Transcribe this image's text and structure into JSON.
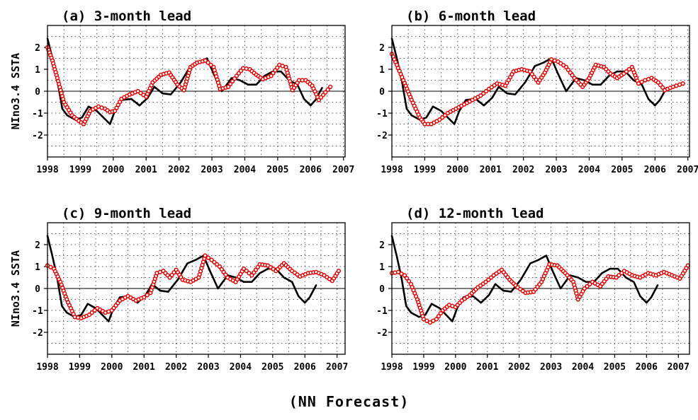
{
  "caption": "(NN Forecast)",
  "colors": {
    "observed": "#000000",
    "forecast": "#ee0000",
    "zero_line": "#000000",
    "grid": "#555555"
  },
  "chart_data": [
    {
      "type": "line",
      "title": "(a) 3-month lead",
      "ylabel": "NIno3.4 SSTA",
      "xlabel": "",
      "xlim": [
        1998,
        2007.05
      ],
      "ylim": [
        -3,
        3
      ],
      "x_ticks": [
        "1998",
        "1999",
        "2000",
        "2001",
        "2002",
        "2003",
        "2004",
        "2005",
        "2006",
        "2007"
      ],
      "y_ticks": [
        "-2",
        "-1",
        "0",
        "1",
        "2"
      ],
      "grid": true,
      "series": [
        {
          "style": "line",
          "color": "#000000",
          "x": [
            1998.0,
            1998.15,
            1998.3,
            1998.45,
            1998.6,
            1998.85,
            1999.05,
            1999.25,
            1999.5,
            1999.7,
            1999.9,
            2000.05,
            2000.25,
            2000.55,
            2000.8,
            2001.05,
            2001.25,
            2001.5,
            2001.75,
            2002.05,
            2002.35,
            2002.6,
            2002.85,
            2003.05,
            2003.3,
            2003.6,
            2003.85,
            2004.1,
            2004.35,
            2004.6,
            2004.85,
            2005.1,
            2005.35,
            2005.6,
            2005.8,
            2006.0,
            2006.15,
            2006.35
          ],
          "y": [
            2.4,
            1.5,
            0.5,
            -0.8,
            -1.1,
            -1.3,
            -1.2,
            -0.7,
            -0.9,
            -1.2,
            -1.5,
            -0.9,
            -0.4,
            -0.35,
            -0.65,
            -0.3,
            0.2,
            -0.1,
            -0.15,
            0.4,
            1.15,
            1.3,
            1.5,
            0.8,
            0.0,
            0.6,
            0.5,
            0.3,
            0.3,
            0.7,
            0.9,
            0.9,
            0.5,
            0.3,
            -0.35,
            -0.65,
            -0.4,
            0.15
          ]
        },
        {
          "style": "circles",
          "color": "#ee0000",
          "x": [
            1998.0,
            1998.15,
            1998.3,
            1998.5,
            1998.75,
            1998.95,
            1999.1,
            1999.3,
            1999.55,
            1999.75,
            1999.9,
            2000.05,
            2000.25,
            2000.5,
            2000.75,
            2001.0,
            2001.2,
            2001.45,
            2001.7,
            2001.95,
            2002.15,
            2002.35,
            2002.55,
            2002.8,
            2003.05,
            2003.25,
            2003.5,
            2003.75,
            2003.95,
            2004.15,
            2004.35,
            2004.55,
            2004.8,
            2005.05,
            2005.25,
            2005.45,
            2005.65,
            2005.85,
            2006.05,
            2006.25,
            2006.45,
            2006.6
          ],
          "y": [
            2.0,
            1.4,
            0.6,
            -0.5,
            -1.1,
            -1.35,
            -1.5,
            -0.9,
            -0.7,
            -0.8,
            -0.95,
            -0.9,
            -0.35,
            -0.15,
            0.0,
            -0.25,
            0.4,
            0.75,
            0.85,
            0.3,
            0.05,
            1.1,
            1.3,
            1.4,
            1.1,
            0.1,
            0.2,
            0.7,
            1.05,
            1.0,
            0.75,
            0.55,
            0.7,
            1.2,
            1.1,
            0.05,
            0.5,
            0.5,
            0.25,
            -0.4,
            -0.05,
            0.2
          ]
        }
      ]
    },
    {
      "type": "line",
      "title": "(b) 6-month lead",
      "ylabel": "",
      "xlabel": "",
      "xlim": [
        1998,
        2007.05
      ],
      "ylim": [
        -3,
        3
      ],
      "x_ticks": [
        "1998",
        "1999",
        "2000",
        "2001",
        "2002",
        "2003",
        "2004",
        "2005",
        "2006",
        "2007"
      ],
      "y_ticks": [
        "-2",
        "-1",
        "0",
        "1",
        "2"
      ],
      "grid": true,
      "series": [
        {
          "style": "line",
          "color": "#000000",
          "x": [
            1998.0,
            1998.15,
            1998.3,
            1998.45,
            1998.6,
            1998.85,
            1999.05,
            1999.25,
            1999.5,
            1999.7,
            1999.9,
            2000.05,
            2000.25,
            2000.55,
            2000.8,
            2001.05,
            2001.25,
            2001.5,
            2001.75,
            2002.05,
            2002.35,
            2002.6,
            2002.85,
            2003.05,
            2003.3,
            2003.6,
            2003.85,
            2004.1,
            2004.35,
            2004.6,
            2004.85,
            2005.1,
            2005.35,
            2005.6,
            2005.8,
            2006.0,
            2006.15,
            2006.35
          ],
          "y": [
            2.4,
            1.5,
            0.5,
            -0.8,
            -1.1,
            -1.3,
            -1.2,
            -0.7,
            -0.9,
            -1.2,
            -1.5,
            -0.9,
            -0.4,
            -0.35,
            -0.65,
            -0.3,
            0.2,
            -0.1,
            -0.15,
            0.4,
            1.15,
            1.3,
            1.5,
            0.8,
            0.0,
            0.6,
            0.5,
            0.3,
            0.3,
            0.7,
            0.9,
            0.9,
            0.5,
            0.3,
            -0.35,
            -0.65,
            -0.4,
            0.15
          ]
        },
        {
          "style": "circles",
          "color": "#ee0000",
          "x": [
            1998.0,
            1998.15,
            1998.35,
            1998.6,
            1998.85,
            1999.0,
            1999.2,
            1999.45,
            1999.7,
            1999.95,
            2000.2,
            2000.45,
            2000.7,
            2000.95,
            2001.2,
            2001.45,
            2001.7,
            2001.95,
            2002.2,
            2002.45,
            2002.65,
            2002.85,
            2003.05,
            2003.3,
            2003.55,
            2003.8,
            2004.0,
            2004.2,
            2004.45,
            2004.65,
            2004.85,
            2005.05,
            2005.3,
            2005.5,
            2005.7,
            2005.9,
            2006.1,
            2006.3,
            2006.55,
            2006.85
          ],
          "y": [
            1.7,
            1.2,
            0.5,
            -0.4,
            -1.2,
            -1.5,
            -1.5,
            -1.3,
            -1.0,
            -0.8,
            -0.6,
            -0.4,
            -0.2,
            0.1,
            0.35,
            0.25,
            0.9,
            1.0,
            0.9,
            0.4,
            0.85,
            1.45,
            1.35,
            1.1,
            0.6,
            0.2,
            0.6,
            1.2,
            1.1,
            0.8,
            0.6,
            0.8,
            1.1,
            0.35,
            0.5,
            0.6,
            0.4,
            0.05,
            0.2,
            0.35
          ]
        }
      ]
    },
    {
      "type": "line",
      "title": "(c) 9-month lead",
      "ylabel": "NIno3.4 SSTA",
      "xlabel": "",
      "xlim": [
        1998,
        2007.25
      ],
      "ylim": [
        -3,
        3
      ],
      "x_ticks": [
        "1998",
        "1999",
        "2000",
        "2001",
        "2002",
        "2003",
        "2004",
        "2005",
        "2006",
        "2007"
      ],
      "y_ticks": [
        "-2",
        "-1",
        "0",
        "1",
        "2"
      ],
      "grid": true,
      "series": [
        {
          "style": "line",
          "color": "#000000",
          "x": [
            1998.0,
            1998.15,
            1998.3,
            1998.45,
            1998.6,
            1998.85,
            1999.05,
            1999.25,
            1999.5,
            1999.7,
            1999.9,
            2000.05,
            2000.25,
            2000.55,
            2000.8,
            2001.05,
            2001.25,
            2001.5,
            2001.75,
            2002.05,
            2002.35,
            2002.6,
            2002.85,
            2003.05,
            2003.3,
            2003.6,
            2003.85,
            2004.1,
            2004.35,
            2004.6,
            2004.85,
            2005.1,
            2005.35,
            2005.6,
            2005.8,
            2006.0,
            2006.15,
            2006.35
          ],
          "y": [
            2.4,
            1.5,
            0.5,
            -0.8,
            -1.1,
            -1.3,
            -1.2,
            -0.7,
            -0.9,
            -1.2,
            -1.5,
            -0.9,
            -0.4,
            -0.35,
            -0.65,
            -0.3,
            0.2,
            -0.1,
            -0.15,
            0.4,
            1.15,
            1.3,
            1.5,
            0.8,
            0.0,
            0.6,
            0.5,
            0.3,
            0.3,
            0.7,
            0.9,
            0.9,
            0.5,
            0.3,
            -0.35,
            -0.65,
            -0.4,
            0.15
          ]
        },
        {
          "style": "circles",
          "color": "#ee0000",
          "x": [
            1998.0,
            1998.2,
            1998.4,
            1998.6,
            1998.85,
            1999.05,
            1999.3,
            1999.55,
            1999.8,
            2000.0,
            2000.25,
            2000.5,
            2000.75,
            2001.0,
            2001.2,
            2001.4,
            2001.6,
            2001.8,
            2002.0,
            2002.2,
            2002.45,
            2002.7,
            2002.9,
            2003.1,
            2003.35,
            2003.6,
            2003.85,
            2004.1,
            2004.35,
            2004.6,
            2004.85,
            2005.1,
            2005.35,
            2005.6,
            2005.85,
            2006.1,
            2006.35,
            2006.6,
            2006.85,
            2007.05
          ],
          "y": [
            1.05,
            0.9,
            0.3,
            -0.5,
            -1.3,
            -1.35,
            -1.2,
            -0.9,
            -1.1,
            -1.0,
            -0.55,
            -0.35,
            -0.55,
            -0.4,
            -0.2,
            0.7,
            0.8,
            0.5,
            0.85,
            0.4,
            0.3,
            0.5,
            1.5,
            1.3,
            1.0,
            0.5,
            0.3,
            0.9,
            0.6,
            1.1,
            1.05,
            0.8,
            1.15,
            0.8,
            0.55,
            0.7,
            0.75,
            0.6,
            0.35,
            0.8
          ]
        }
      ]
    },
    {
      "type": "line",
      "title": "(d) 12-month lead",
      "ylabel": "",
      "xlabel": "",
      "xlim": [
        1998,
        2007.35
      ],
      "ylim": [
        -3,
        3
      ],
      "x_ticks": [
        "1998",
        "1999",
        "2000",
        "2001",
        "2002",
        "2003",
        "2004",
        "2005",
        "2006",
        "2007"
      ],
      "y_ticks": [
        "-2",
        "-1",
        "0",
        "1",
        "2"
      ],
      "grid": true,
      "series": [
        {
          "style": "line",
          "color": "#000000",
          "x": [
            1998.0,
            1998.15,
            1998.3,
            1998.45,
            1998.6,
            1998.85,
            1999.05,
            1999.25,
            1999.5,
            1999.7,
            1999.9,
            2000.05,
            2000.25,
            2000.55,
            2000.8,
            2001.05,
            2001.25,
            2001.5,
            2001.75,
            2002.05,
            2002.35,
            2002.6,
            2002.85,
            2003.05,
            2003.3,
            2003.6,
            2003.85,
            2004.1,
            2004.35,
            2004.6,
            2004.85,
            2005.1,
            2005.35,
            2005.6,
            2005.8,
            2006.0,
            2006.15,
            2006.35
          ],
          "y": [
            2.4,
            1.5,
            0.5,
            -0.8,
            -1.1,
            -1.3,
            -1.2,
            -0.7,
            -0.9,
            -1.2,
            -1.5,
            -0.9,
            -0.4,
            -0.35,
            -0.65,
            -0.3,
            0.2,
            -0.1,
            -0.15,
            0.4,
            1.15,
            1.3,
            1.5,
            0.8,
            0.0,
            0.6,
            0.5,
            0.3,
            0.3,
            0.7,
            0.9,
            0.9,
            0.5,
            0.3,
            -0.35,
            -0.65,
            -0.4,
            0.15
          ]
        },
        {
          "style": "circles",
          "color": "#ee0000",
          "x": [
            1998.0,
            1998.2,
            1998.4,
            1998.6,
            1998.8,
            1999.0,
            1999.2,
            1999.4,
            1999.6,
            1999.8,
            2000.0,
            2000.2,
            2000.45,
            2000.7,
            2000.95,
            2001.2,
            2001.45,
            2001.7,
            2001.95,
            2002.2,
            2002.45,
            2002.7,
            2002.95,
            2003.2,
            2003.45,
            2003.7,
            2003.85,
            2004.05,
            2004.3,
            2004.55,
            2004.8,
            2005.05,
            2005.3,
            2005.55,
            2005.8,
            2006.05,
            2006.3,
            2006.55,
            2006.8,
            2007.05,
            2007.3
          ],
          "y": [
            0.7,
            0.75,
            0.6,
            0.2,
            -0.5,
            -1.4,
            -1.55,
            -1.4,
            -1.0,
            -0.75,
            -0.85,
            -0.55,
            -0.3,
            0.05,
            0.3,
            0.6,
            0.85,
            0.4,
            0.05,
            -0.2,
            -0.15,
            0.3,
            1.1,
            1.05,
            0.7,
            0.3,
            -0.5,
            0.0,
            0.3,
            0.1,
            0.55,
            0.5,
            0.8,
            0.6,
            0.5,
            0.7,
            0.6,
            0.75,
            0.6,
            0.45,
            1.05
          ]
        }
      ]
    }
  ]
}
